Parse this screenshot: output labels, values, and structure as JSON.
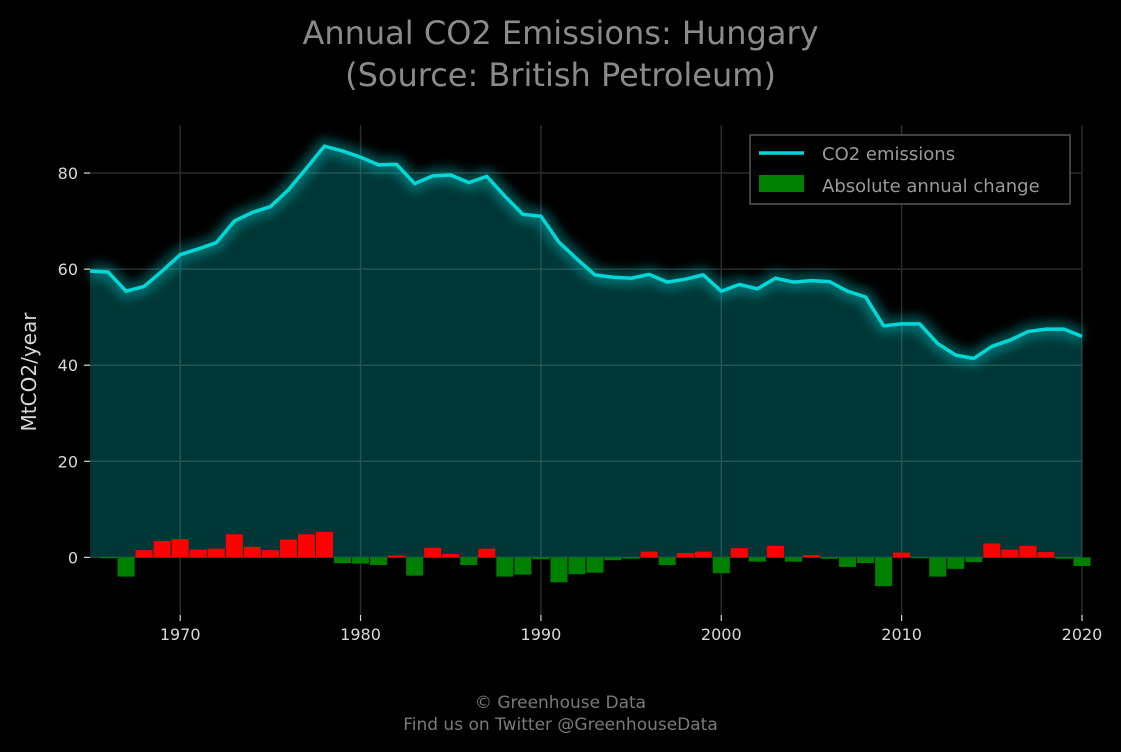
{
  "chart_data": {
    "type": "line",
    "title_line1": "Annual CO2 Emissions: Hungary",
    "title_line2": "(Source: British Petroleum)",
    "xlabel": "",
    "ylabel": "MtCO2/year",
    "xlim": [
      1965,
      2020
    ],
    "ylim": [
      -12,
      90
    ],
    "x_ticks": [
      1970,
      1980,
      1990,
      2000,
      2010,
      2020
    ],
    "y_ticks": [
      0,
      20,
      40,
      60,
      80
    ],
    "grid": true,
    "legend_position": "top-right",
    "series": [
      {
        "name": "CO2 emissions",
        "type": "line",
        "color": "#00d7d7",
        "x": [
          1965,
          1966,
          1967,
          1968,
          1969,
          1970,
          1971,
          1972,
          1973,
          1974,
          1975,
          1976,
          1977,
          1978,
          1979,
          1980,
          1981,
          1982,
          1983,
          1984,
          1985,
          1986,
          1987,
          1988,
          1989,
          1990,
          1991,
          1992,
          1993,
          1994,
          1995,
          1996,
          1997,
          1998,
          1999,
          2000,
          2001,
          2002,
          2003,
          2004,
          2005,
          2006,
          2007,
          2008,
          2009,
          2010,
          2011,
          2012,
          2013,
          2014,
          2015,
          2016,
          2017,
          2018,
          2019,
          2020
        ],
        "values": [
          59.6,
          59.4,
          55.4,
          56.4,
          59.6,
          63.0,
          64.2,
          65.5,
          70.0,
          71.8,
          73.0,
          76.5,
          81.0,
          85.6,
          84.6,
          83.3,
          81.7,
          81.8,
          77.8,
          79.4,
          79.6,
          78.0,
          79.3,
          75.2,
          71.4,
          71.0,
          65.6,
          62.1,
          58.8,
          58.3,
          58.1,
          58.9,
          57.3,
          57.9,
          58.8,
          55.4,
          56.8,
          55.9,
          58.1,
          57.3,
          57.6,
          57.4,
          55.4,
          54.2,
          48.2,
          48.6,
          48.6,
          44.5,
          42.1,
          41.4,
          43.9,
          45.2,
          47.0,
          47.5,
          47.5,
          46.0
        ]
      },
      {
        "name": "Absolute annual change",
        "type": "bar",
        "color_increase": "#ff0000",
        "color_decrease": "#008000",
        "x": [
          1966,
          1967,
          1968,
          1969,
          1970,
          1971,
          1972,
          1973,
          1974,
          1975,
          1976,
          1977,
          1978,
          1979,
          1980,
          1981,
          1982,
          1983,
          1984,
          1985,
          1986,
          1987,
          1988,
          1989,
          1990,
          1991,
          1992,
          1993,
          1994,
          1995,
          1996,
          1997,
          1998,
          1999,
          2000,
          2001,
          2002,
          2003,
          2004,
          2005,
          2006,
          2007,
          2008,
          2009,
          2010,
          2011,
          2012,
          2013,
          2014,
          2015,
          2016,
          2017,
          2018,
          2019,
          2020
        ],
        "values": [
          -0.2,
          -4.0,
          1.5,
          3.4,
          3.8,
          1.6,
          1.8,
          4.8,
          2.2,
          1.5,
          3.7,
          4.8,
          5.3,
          -1.2,
          -1.3,
          -1.6,
          0.4,
          -3.8,
          2.0,
          0.7,
          -1.6,
          1.8,
          -4.0,
          -3.6,
          -0.4,
          -5.2,
          -3.5,
          -3.2,
          -0.6,
          -0.3,
          1.2,
          -1.6,
          0.9,
          1.2,
          -3.3,
          1.9,
          -0.9,
          2.4,
          -0.9,
          0.5,
          -0.3,
          -2.0,
          -1.2,
          -6.0,
          1.0,
          -0.2,
          -4.0,
          -2.4,
          -1.0,
          2.9,
          1.6,
          2.4,
          1.1,
          -0.3,
          -1.8
        ]
      }
    ]
  },
  "footer": {
    "line1": "© Greenhouse Data",
    "line2": "Find us on Twitter @GreenhouseData"
  }
}
